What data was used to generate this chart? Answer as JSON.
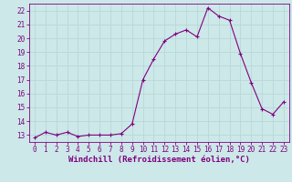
{
  "x": [
    0,
    1,
    2,
    3,
    4,
    5,
    6,
    7,
    8,
    9,
    10,
    11,
    12,
    13,
    14,
    15,
    16,
    17,
    18,
    19,
    20,
    21,
    22,
    23
  ],
  "y": [
    12.8,
    13.2,
    13.0,
    13.2,
    12.9,
    13.0,
    13.0,
    13.0,
    13.1,
    13.8,
    17.0,
    18.5,
    19.8,
    20.3,
    20.6,
    20.1,
    22.2,
    21.6,
    21.3,
    18.9,
    16.8,
    14.9,
    14.5,
    15.4
  ],
  "line_color": "#800080",
  "marker": "+",
  "marker_size": 4,
  "bg_color": "#cce8e8",
  "grid_color": "#aacccc",
  "xlabel": "Windchill (Refroidissement éolien,°C)",
  "xlim": [
    -0.5,
    23.5
  ],
  "ylim": [
    12.5,
    22.5
  ],
  "yticks": [
    13,
    14,
    15,
    16,
    17,
    18,
    19,
    20,
    21,
    22
  ],
  "xticks": [
    0,
    1,
    2,
    3,
    4,
    5,
    6,
    7,
    8,
    9,
    10,
    11,
    12,
    13,
    14,
    15,
    16,
    17,
    18,
    19,
    20,
    21,
    22,
    23
  ],
  "tick_color": "#800080",
  "label_color": "#800080",
  "label_fontsize": 6.5,
  "tick_fontsize": 5.5
}
